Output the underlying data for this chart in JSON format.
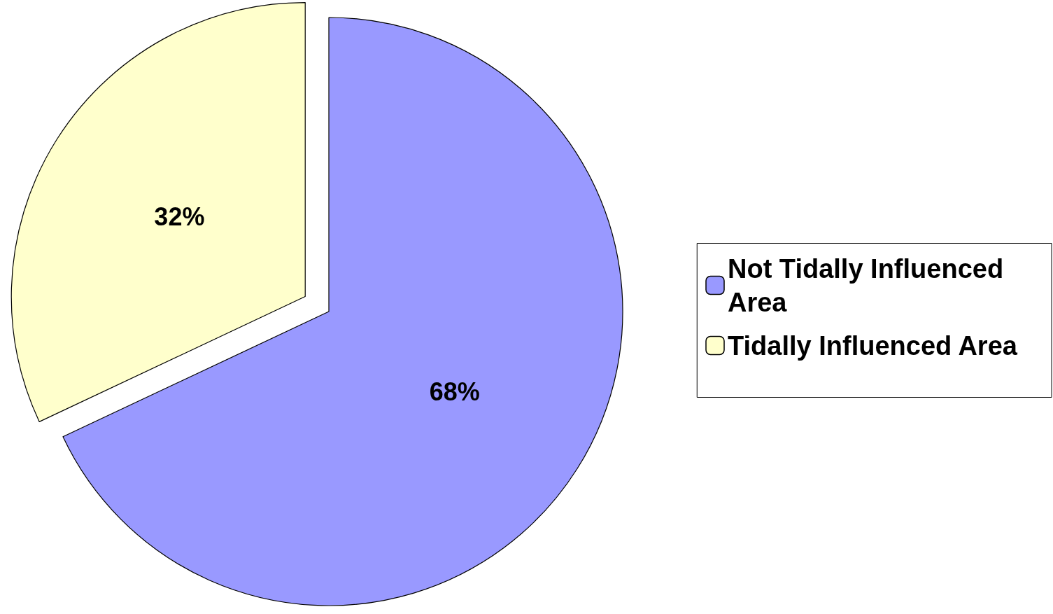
{
  "chart_data": {
    "type": "pie",
    "categories": [
      "Not Tidally Influenced Area",
      "Tidally Influenced Area"
    ],
    "values": [
      68,
      32
    ],
    "colors": [
      "#9999ff",
      "#ffffcc"
    ],
    "value_labels": [
      "68%",
      "32%"
    ],
    "legend": "right"
  }
}
